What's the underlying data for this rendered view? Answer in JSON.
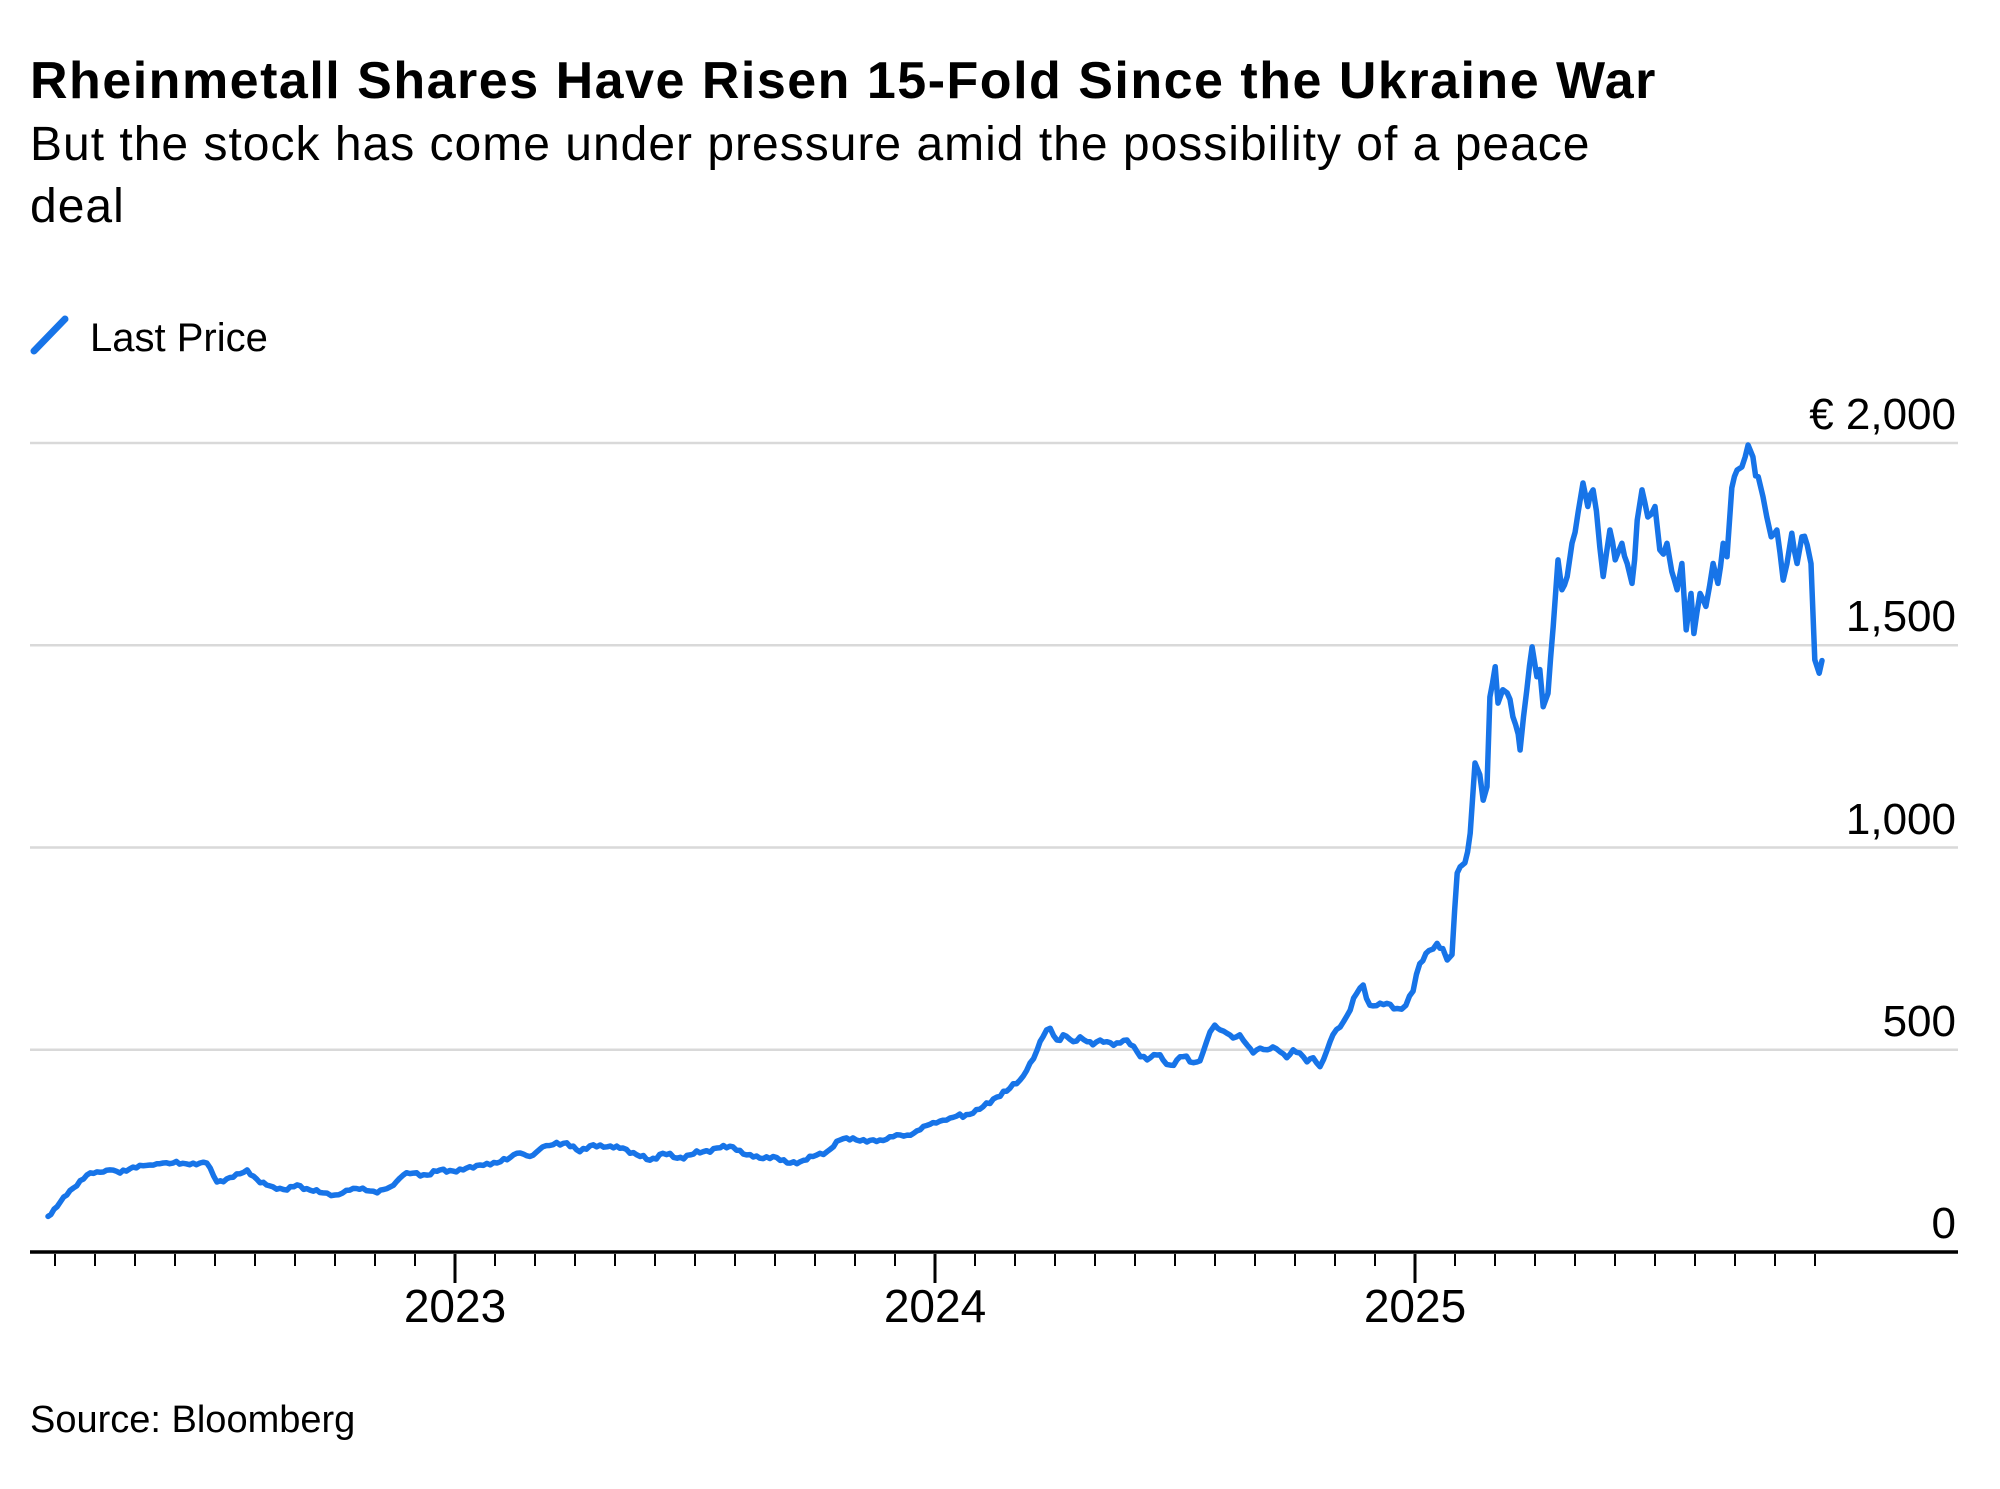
{
  "header": {
    "title": "Rheinmetall Shares Have Risen 15-Fold Since the Ukraine War",
    "subtitle_line1": "But the stock has come under pressure amid the possibility of a peace",
    "subtitle_line2": "deal"
  },
  "legend": {
    "label": "Last Price"
  },
  "source": "Source: Bloomberg",
  "colors": {
    "line": "#1774E8",
    "grid": "#D9D9D9",
    "axis": "#000000",
    "text": "#000000",
    "background": "#FFFFFF"
  },
  "chart_data": {
    "type": "line",
    "title": "Rheinmetall Shares Have Risen 15-Fold Since the Ukraine War",
    "subtitle": "But the stock has come under pressure amid the possibility of a peace deal",
    "source": "Source: Bloomberg",
    "legend_position": "top-left",
    "grid": "horizontal",
    "x_unit": "decimal_year",
    "x_axis": {
      "tick_labels": [
        "2023",
        "2024",
        "2025"
      ],
      "tick_values": [
        2023,
        2024,
        2025
      ],
      "minor_tick_interval_months": 1,
      "range": [
        2022.12,
        2025.9
      ]
    },
    "y_axis": {
      "tick_labels": [
        "€ 2,000",
        "1,500",
        "1,000",
        "500",
        "0"
      ],
      "tick_values": [
        2000,
        1500,
        1000,
        500,
        0
      ],
      "ylim": [
        0,
        2000
      ],
      "currency": "EUR"
    },
    "series": [
      {
        "name": "Last Price",
        "points": [
          [
            2022.152,
            88
          ],
          [
            2022.171,
            112
          ],
          [
            2022.198,
            152
          ],
          [
            2022.233,
            190
          ],
          [
            2022.254,
            198
          ],
          [
            2022.281,
            203
          ],
          [
            2022.302,
            195
          ],
          [
            2022.329,
            210
          ],
          [
            2022.365,
            215
          ],
          [
            2022.392,
            220
          ],
          [
            2022.44,
            218
          ],
          [
            2022.483,
            220
          ],
          [
            2022.504,
            173
          ],
          [
            2022.538,
            185
          ],
          [
            2022.567,
            203
          ],
          [
            2022.594,
            171
          ],
          [
            2022.621,
            161
          ],
          [
            2022.65,
            153
          ],
          [
            2022.671,
            166
          ],
          [
            2022.698,
            153
          ],
          [
            2022.725,
            146
          ],
          [
            2022.75,
            141
          ],
          [
            2022.781,
            153
          ],
          [
            2022.808,
            158
          ],
          [
            2022.838,
            146
          ],
          [
            2022.865,
            161
          ],
          [
            2022.892,
            190
          ],
          [
            2022.913,
            195
          ],
          [
            2022.942,
            190
          ],
          [
            2022.969,
            203
          ],
          [
            2022.996,
            200
          ],
          [
            2023.017,
            203
          ],
          [
            2023.052,
            215
          ],
          [
            2023.088,
            220
          ],
          [
            2023.129,
            244
          ],
          [
            2023.156,
            236
          ],
          [
            2023.183,
            260
          ],
          [
            2023.233,
            270
          ],
          [
            2023.26,
            248
          ],
          [
            2023.288,
            265
          ],
          [
            2023.317,
            260
          ],
          [
            2023.35,
            257
          ],
          [
            2023.379,
            240
          ],
          [
            2023.406,
            227
          ],
          [
            2023.433,
            244
          ],
          [
            2023.463,
            232
          ],
          [
            2023.49,
            240
          ],
          [
            2023.517,
            248
          ],
          [
            2023.546,
            257
          ],
          [
            2023.579,
            260
          ],
          [
            2023.608,
            240
          ],
          [
            2023.635,
            232
          ],
          [
            2023.663,
            236
          ],
          [
            2023.692,
            220
          ],
          [
            2023.719,
            223
          ],
          [
            2023.746,
            236
          ],
          [
            2023.775,
            248
          ],
          [
            2023.802,
            277
          ],
          [
            2023.829,
            282
          ],
          [
            2023.858,
            272
          ],
          [
            2023.885,
            277
          ],
          [
            2023.913,
            285
          ],
          [
            2023.942,
            289
          ],
          [
            2023.969,
            302
          ],
          [
            2023.996,
            320
          ],
          [
            2024.031,
            331
          ],
          [
            2024.079,
            343
          ],
          [
            2024.1,
            359
          ],
          [
            2024.129,
            383
          ],
          [
            2024.156,
            405
          ],
          [
            2024.177,
            425
          ],
          [
            2024.198,
            467
          ],
          [
            2024.213,
            500
          ],
          [
            2024.225,
            532
          ],
          [
            2024.24,
            553
          ],
          [
            2024.254,
            524
          ],
          [
            2024.267,
            537
          ],
          [
            2024.288,
            520
          ],
          [
            2024.302,
            532
          ],
          [
            2024.317,
            520
          ],
          [
            2024.329,
            512
          ],
          [
            2024.344,
            524
          ],
          [
            2024.358,
            520
          ],
          [
            2024.379,
            517
          ],
          [
            2024.4,
            524
          ],
          [
            2024.421,
            495
          ],
          [
            2024.442,
            475
          ],
          [
            2024.463,
            487
          ],
          [
            2024.475,
            475
          ],
          [
            2024.49,
            462
          ],
          [
            2024.504,
            475
          ],
          [
            2024.517,
            483
          ],
          [
            2024.531,
            470
          ],
          [
            2024.546,
            470
          ],
          [
            2024.558,
            492
          ],
          [
            2024.573,
            544
          ],
          [
            2024.583,
            561
          ],
          [
            2024.594,
            549
          ],
          [
            2024.608,
            541
          ],
          [
            2024.621,
            529
          ],
          [
            2024.635,
            537
          ],
          [
            2024.65,
            512
          ],
          [
            2024.663,
            492
          ],
          [
            2024.677,
            504
          ],
          [
            2024.692,
            500
          ],
          [
            2024.704,
            507
          ],
          [
            2024.719,
            495
          ],
          [
            2024.733,
            480
          ],
          [
            2024.746,
            500
          ],
          [
            2024.76,
            492
          ],
          [
            2024.775,
            470
          ],
          [
            2024.788,
            480
          ],
          [
            2024.802,
            458
          ],
          [
            2024.817,
            500
          ],
          [
            2024.829,
            537
          ],
          [
            2024.844,
            556
          ],
          [
            2024.865,
            598
          ],
          [
            2024.879,
            640
          ],
          [
            2024.892,
            660
          ],
          [
            2024.906,
            610
          ],
          [
            2024.927,
            615
          ],
          [
            2024.963,
            602
          ],
          [
            2024.981,
            610
          ],
          [
            2024.996,
            645
          ],
          [
            2025.01,
            713
          ],
          [
            2025.029,
            745
          ],
          [
            2025.046,
            763
          ],
          [
            2025.058,
            750
          ],
          [
            2025.067,
            722
          ],
          [
            2025.077,
            735
          ],
          [
            2025.088,
            937
          ],
          [
            2025.094,
            952
          ],
          [
            2025.104,
            962
          ],
          [
            2025.115,
            1035
          ],
          [
            2025.125,
            1209
          ],
          [
            2025.135,
            1180
          ],
          [
            2025.142,
            1117
          ],
          [
            2025.15,
            1150
          ],
          [
            2025.156,
            1372
          ],
          [
            2025.167,
            1447
          ],
          [
            2025.173,
            1357
          ],
          [
            2025.183,
            1390
          ],
          [
            2025.192,
            1382
          ],
          [
            2025.204,
            1323
          ],
          [
            2025.215,
            1280
          ],
          [
            2025.219,
            1241
          ],
          [
            2025.233,
            1389
          ],
          [
            2025.244,
            1496
          ],
          [
            2025.254,
            1422
          ],
          [
            2025.26,
            1440
          ],
          [
            2025.267,
            1348
          ],
          [
            2025.277,
            1381
          ],
          [
            2025.288,
            1546
          ],
          [
            2025.298,
            1711
          ],
          [
            2025.306,
            1637
          ],
          [
            2025.317,
            1670
          ],
          [
            2025.327,
            1752
          ],
          [
            2025.34,
            1830
          ],
          [
            2025.35,
            1901
          ],
          [
            2025.36,
            1843
          ],
          [
            2025.371,
            1884
          ],
          [
            2025.385,
            1743
          ],
          [
            2025.392,
            1670
          ],
          [
            2025.406,
            1785
          ],
          [
            2025.417,
            1711
          ],
          [
            2025.431,
            1752
          ],
          [
            2025.442,
            1702
          ],
          [
            2025.452,
            1653
          ],
          [
            2025.463,
            1809
          ],
          [
            2025.473,
            1884
          ],
          [
            2025.485,
            1817
          ],
          [
            2025.5,
            1843
          ],
          [
            2025.51,
            1736
          ],
          [
            2025.525,
            1752
          ],
          [
            2025.535,
            1682
          ],
          [
            2025.546,
            1637
          ],
          [
            2025.556,
            1702
          ],
          [
            2025.565,
            1538
          ],
          [
            2025.575,
            1628
          ],
          [
            2025.581,
            1529
          ],
          [
            2025.594,
            1628
          ],
          [
            2025.606,
            1596
          ],
          [
            2025.621,
            1702
          ],
          [
            2025.631,
            1653
          ],
          [
            2025.642,
            1752
          ],
          [
            2025.65,
            1719
          ],
          [
            2025.66,
            1889
          ],
          [
            2025.671,
            1933
          ],
          [
            2025.681,
            1941
          ],
          [
            2025.688,
            1966
          ],
          [
            2025.694,
            1995
          ],
          [
            2025.704,
            1966
          ],
          [
            2025.715,
            1917
          ],
          [
            2025.725,
            1867
          ],
          [
            2025.733,
            1817
          ],
          [
            2025.742,
            1768
          ],
          [
            2025.754,
            1785
          ],
          [
            2025.767,
            1661
          ],
          [
            2025.775,
            1702
          ],
          [
            2025.785,
            1777
          ],
          [
            2025.796,
            1702
          ],
          [
            2025.806,
            1768
          ],
          [
            2025.817,
            1748
          ],
          [
            2025.825,
            1702
          ],
          [
            2025.833,
            1464
          ],
          [
            2025.842,
            1431
          ],
          [
            2025.848,
            1462
          ]
        ]
      }
    ]
  }
}
